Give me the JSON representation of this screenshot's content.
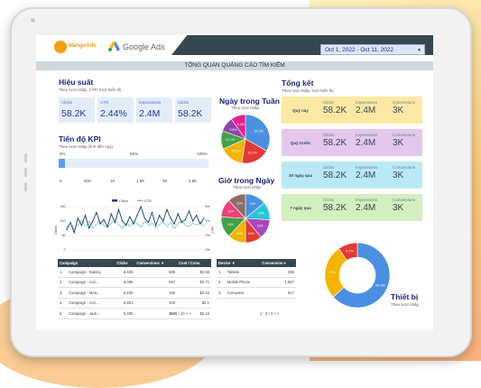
{
  "header": {
    "logo_text": "MangoAds",
    "google_ads_label": "Google Ads",
    "date_range": "Oct 1, 2022 - Oct 11, 2022",
    "page_title": "TỔNG QUAN QUẢNG CÁO TÌM KIẾM"
  },
  "performance": {
    "title": "Hiệu suất",
    "subtitle": "Theo lượt nhấp, CTR, lượt hiển thị",
    "cards": [
      {
        "label": "Clicks",
        "value": "58.2K"
      },
      {
        "label": "CTR",
        "value": "2.44%"
      },
      {
        "label": "Impressions",
        "value": "2.4M"
      },
      {
        "label": "Clicks",
        "value": "58.2K"
      }
    ]
  },
  "kpi_progress": {
    "title": "Tiến độ KPI",
    "subtitle": "Theo lượt nhấp (tính đến nay)",
    "scale": [
      "0%",
      "50%",
      "100%"
    ],
    "axis": [
      "0",
      "500",
      "1K",
      "1.5K",
      "2K",
      "2.5K"
    ],
    "fraction": 0.04
  },
  "weekday": {
    "title": "Ngày trong Tuần",
    "subtitle": "Theo lượt nhấp",
    "slices": [
      {
        "label": "33.2%",
        "value": 33.2,
        "color": "#4a90e2"
      },
      {
        "label": "19.2%",
        "value": 19.2,
        "color": "#e53935"
      },
      {
        "label": "15.9%",
        "value": 15.9,
        "color": "#f4b400"
      },
      {
        "label": "12.1%",
        "value": 12.1,
        "color": "#43a047"
      },
      {
        "label": "9.8%",
        "value": 9.8,
        "color": "#8e44ad"
      },
      {
        "label": "9.8%",
        "value": 9.8,
        "color": "#e91e8c"
      }
    ]
  },
  "hour": {
    "title": "Giờ trong Ngày",
    "subtitle": "Theo lượt nhấp",
    "slices": [
      {
        "label": "14%",
        "value": 14,
        "color": "#4a90e2"
      },
      {
        "label": "12%",
        "value": 12,
        "color": "#26c6da"
      },
      {
        "label": "13%",
        "value": 13,
        "color": "#ab47bc"
      },
      {
        "label": "11%",
        "value": 11,
        "color": "#e53935"
      },
      {
        "label": "12%",
        "value": 12,
        "color": "#f4b400"
      },
      {
        "label": "14%",
        "value": 14,
        "color": "#43a047"
      },
      {
        "label": "12%",
        "value": 12,
        "color": "#ec407a"
      },
      {
        "label": "12%",
        "value": 12,
        "color": "#8d6e63"
      }
    ]
  },
  "summary": {
    "title": "Tổng kết",
    "subtitle": "Theo lượt nhấp, lượt hiển thị",
    "col_labels": [
      "Clicks",
      "Impressions",
      "Conversions"
    ],
    "rows": [
      {
        "label": "Quý này",
        "clicks": "58.2K",
        "impressions": "2.4M",
        "conversions": "3K",
        "color": "#fde9a4"
      },
      {
        "label": "Quý trước",
        "clicks": "58.2K",
        "impressions": "2.4M",
        "conversions": "3K",
        "color": "#e3c7ec"
      },
      {
        "label": "30 ngày qua",
        "clicks": "58.2K",
        "impressions": "2.4M",
        "conversions": "3K",
        "color": "#b9e9f5"
      },
      {
        "label": "7 ngày qua",
        "clicks": "58.2K",
        "impressions": "2.4M",
        "conversions": "3K",
        "color": "#d3efbf"
      }
    ]
  },
  "trend": {
    "legend": [
      "Clicks",
      "CTR"
    ],
    "y_left_label": "Clicks",
    "y_right_label": "CTR",
    "y_left_ticks": [
      "0",
      "50",
      "100",
      "150"
    ],
    "y_right_ticks": [
      "0%",
      "2%",
      "4%",
      "6%"
    ],
    "clicks_color": "#1a3a6b",
    "ctr_color": "#26a69a",
    "clicks": [
      70,
      95,
      60,
      110,
      85,
      120,
      75,
      100,
      130,
      90,
      105,
      80,
      125,
      95,
      140,
      100,
      85,
      115,
      90,
      120,
      150,
      110,
      95,
      130,
      85,
      120,
      100,
      140,
      110,
      90,
      125,
      95,
      105,
      135,
      100,
      120,
      90,
      110
    ],
    "ctr": [
      3.2,
      3.8,
      2.9,
      3.5,
      4.1,
      3.3,
      3.9,
      3.0,
      3.6,
      4.0,
      3.4,
      3.1,
      3.7,
      4.2,
      3.5,
      3.0,
      3.8,
      3.3,
      3.9,
      3.6,
      3.2,
      4.0,
      3.4,
      3.7,
      3.1,
      3.5,
      3.9,
      3.3,
      3.8,
      3.0,
      3.6,
      4.1,
      3.4,
      3.2,
      3.7,
      3.5,
      3.9,
      3.3
    ]
  },
  "campaign_table": {
    "headers": [
      "Campaign",
      "Clicks",
      "Conversions ▼",
      "Cost / Conv."
    ],
    "rows": [
      [
        "1.",
        "Campaign - Baking",
        "8,426",
        "588",
        "$2.68"
      ],
      [
        "2.",
        "Campaign - Acti...",
        "6,086",
        "557",
        "$2.71"
      ],
      [
        "3.",
        "Campaign - Moo...",
        "6,105",
        "455",
        "$2.43"
      ],
      [
        "4.",
        "Campaign - Acti...",
        "6,801",
        "400",
        "$2.1"
      ],
      [
        "5.",
        "Campaign - Jack...",
        "6,405",
        "386",
        "$2.16"
      ]
    ],
    "pager": "1 - 5 / 10"
  },
  "device_table": {
    "headers": [
      "Device ▼",
      "Conversion ▾"
    ],
    "rows": [
      [
        "1.",
        "Tablets",
        "385"
      ],
      [
        "2.",
        "Mobile Phone",
        "1,897"
      ],
      [
        "3.",
        "Computer",
        "817"
      ]
    ],
    "pager": "1 - 3 / 3"
  },
  "devices": {
    "title": "Thiết bị",
    "subtitle": "Theo lượt nhấp",
    "slices": [
      {
        "label": "63.3%",
        "value": 63.3,
        "color": "#4a90e2"
      },
      {
        "label": "27%",
        "value": 27,
        "color": "#f4b400"
      },
      {
        "label": "9.7%",
        "value": 9.7,
        "color": "#e53935"
      }
    ]
  }
}
